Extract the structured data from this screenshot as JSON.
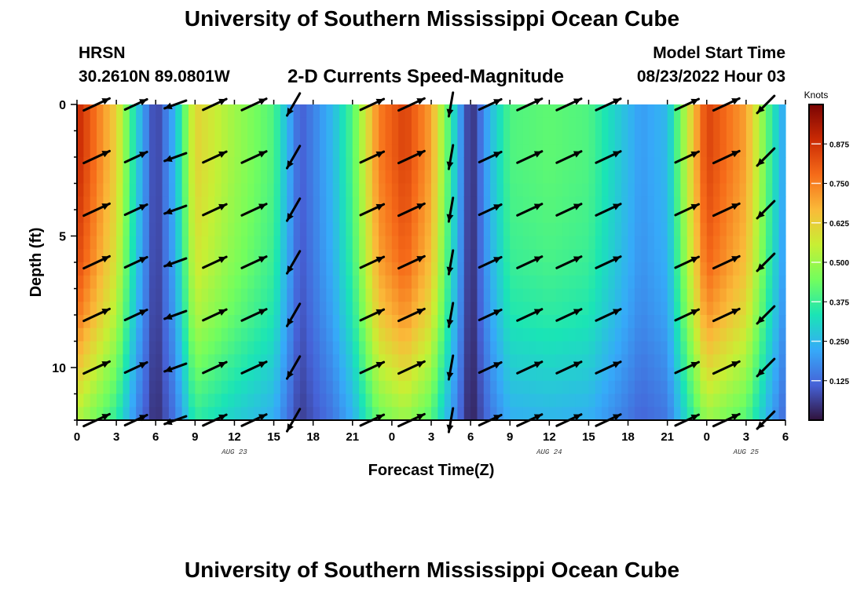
{
  "header": {
    "title": "University of Southern Mississippi Ocean Cube",
    "station": "HRSN",
    "coords": "30.2610N  89.0801W",
    "plot_title": "2-D Currents Speed-Magnitude",
    "model_label": "Model Start Time",
    "model_time": "08/23/2022 Hour 03"
  },
  "footer": {
    "title": "University of Southern Mississippi Ocean Cube"
  },
  "chart_data": {
    "type": "heatmap",
    "title": "2-D Currents Speed-Magnitude",
    "xlabel": "Forecast Time(Z)",
    "ylabel": "Depth (ft)",
    "x_ticks": [
      "0",
      "3",
      "6",
      "9",
      "12",
      "15",
      "18",
      "21",
      "0",
      "3",
      "6",
      "9",
      "12",
      "15",
      "18",
      "21",
      "0",
      "3",
      "6"
    ],
    "x_hours": [
      0,
      3,
      6,
      9,
      12,
      15,
      18,
      21,
      24,
      27,
      30,
      33,
      36,
      39,
      42,
      45,
      48,
      51,
      54
    ],
    "xlim": [
      0,
      54
    ],
    "date_labels": [
      {
        "hour": 12,
        "text": "AUG 23"
      },
      {
        "hour": 36,
        "text": "AUG 24"
      },
      {
        "hour": 51,
        "text": "AUG 25"
      }
    ],
    "y_ticks": [
      "0",
      "5",
      "10"
    ],
    "ylim": [
      0,
      12
    ],
    "colorbar": {
      "label": "Knots",
      "ticks": [
        "0.875",
        "0.750",
        "0.625",
        "0.500",
        "0.375",
        "0.250",
        "0.125"
      ],
      "tick_values": [
        0.875,
        0.75,
        0.625,
        0.5,
        0.375,
        0.25,
        0.125
      ],
      "range": [
        0,
        1
      ],
      "colors": [
        "#30123b",
        "#4662d7",
        "#36aaf9",
        "#1ae4b6",
        "#72fe5e",
        "#c8ef34",
        "#faba39",
        "#f66b19",
        "#ca2a04",
        "#7a0403"
      ]
    },
    "depths_ft": [
      0,
      2,
      4,
      6,
      8,
      10,
      12
    ],
    "speed_by_hour": [
      {
        "hour": 0,
        "speed": 0.9
      },
      {
        "hour": 3,
        "speed": 0.62
      },
      {
        "hour": 4.5,
        "speed": 0.3
      },
      {
        "hour": 6,
        "speed": 0.05
      },
      {
        "hour": 7.5,
        "speed": 0.25
      },
      {
        "hour": 9,
        "speed": 0.62
      },
      {
        "hour": 12,
        "speed": 0.5
      },
      {
        "hour": 15,
        "speed": 0.4
      },
      {
        "hour": 17,
        "speed": 0.1
      },
      {
        "hour": 19.5,
        "speed": 0.25
      },
      {
        "hour": 21,
        "speed": 0.4
      },
      {
        "hour": 23,
        "speed": 0.75
      },
      {
        "hour": 25,
        "speed": 0.85
      },
      {
        "hour": 27,
        "speed": 0.7
      },
      {
        "hour": 29,
        "speed": 0.25
      },
      {
        "hour": 30,
        "speed": 0.02
      },
      {
        "hour": 31.5,
        "speed": 0.25
      },
      {
        "hour": 33,
        "speed": 0.4
      },
      {
        "hour": 36,
        "speed": 0.42
      },
      {
        "hour": 39,
        "speed": 0.4
      },
      {
        "hour": 41,
        "speed": 0.3
      },
      {
        "hour": 43,
        "speed": 0.2
      },
      {
        "hour": 45,
        "speed": 0.25
      },
      {
        "hour": 46.5,
        "speed": 0.55
      },
      {
        "hour": 48,
        "speed": 0.85
      },
      {
        "hour": 51,
        "speed": 0.7
      },
      {
        "hour": 53,
        "speed": 0.35
      },
      {
        "hour": 54,
        "speed": 0.2
      }
    ],
    "depth_factor": [
      1.0,
      1.0,
      0.97,
      0.93,
      0.85,
      0.72,
      0.58
    ],
    "vectors": {
      "hours": [
        1.5,
        4.5,
        7.5,
        10.5,
        13.5,
        16.5,
        22.5,
        25.5,
        28.5,
        31.5,
        34.5,
        37.5,
        40.5,
        46.5,
        49.5,
        52.5
      ],
      "depths_ft": [
        0,
        2,
        4,
        6,
        8,
        10,
        12
      ],
      "direction_deg": [
        25,
        25,
        200,
        25,
        25,
        240,
        25,
        25,
        260,
        25,
        25,
        25,
        25,
        25,
        25,
        225
      ],
      "length": [
        0.9,
        0.6,
        0.5,
        0.7,
        0.8,
        0.7,
        0.7,
        0.9,
        0.6,
        0.6,
        0.8,
        0.8,
        0.8,
        0.7,
        0.9,
        0.6
      ]
    }
  }
}
